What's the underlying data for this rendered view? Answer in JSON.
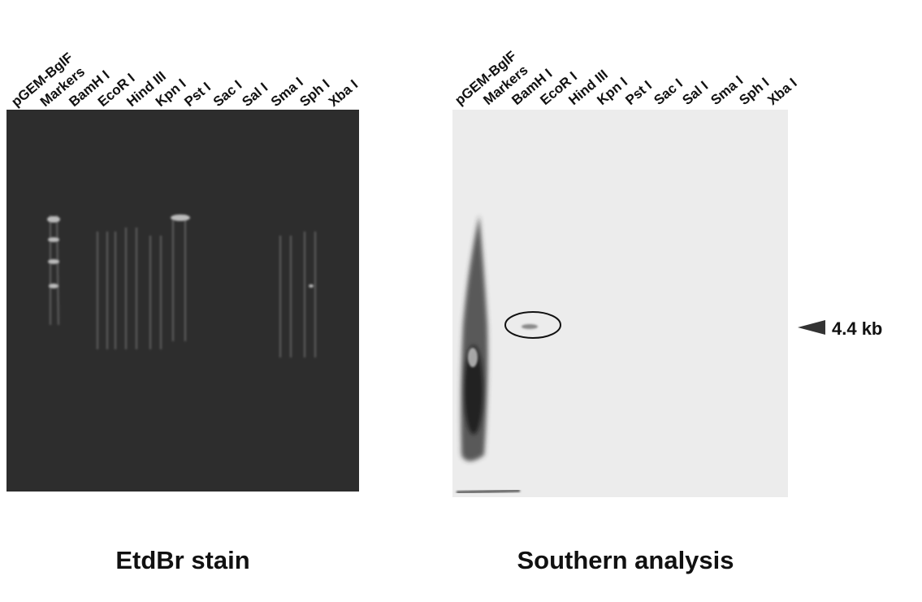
{
  "panels": [
    {
      "lanes": [
        "pGEM-BglF",
        "Markers",
        "BamH I",
        "EcoR I",
        "Hind III",
        "Kpn I",
        "Pst I",
        "Sac I",
        "Sal I",
        "Sma I",
        "Sph I",
        "Xba I"
      ],
      "caption": "EtdBr stain"
    },
    {
      "lanes": [
        "pGEM-BglF",
        "Markers",
        "BamH I",
        "EcoR I",
        "Hind III",
        "Kpn I",
        "Pst I",
        "Sac I",
        "Sal I",
        "Sma I",
        "Sph I",
        "Xba I"
      ],
      "caption": "Southern analysis"
    }
  ],
  "annotation": "4.4 kb"
}
